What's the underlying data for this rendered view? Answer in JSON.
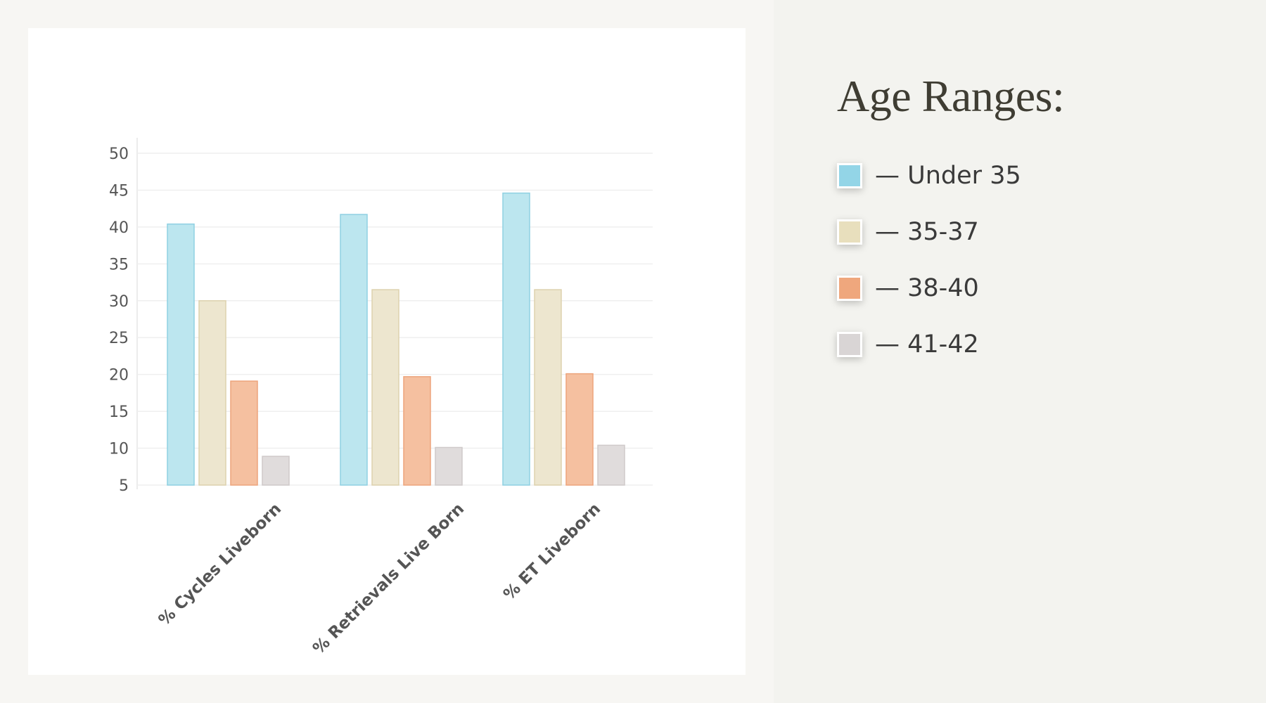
{
  "legend": {
    "title": "Age Ranges:",
    "items": [
      {
        "label": "— Under 35",
        "color": "#93d5e7"
      },
      {
        "label": "— 35-37",
        "color": "#e8dfbd"
      },
      {
        "label": "— 38-40",
        "color": "#efa77d"
      },
      {
        "label": "— 41-42",
        "color": "#d9d5d5"
      }
    ]
  },
  "chart_data": {
    "type": "bar",
    "categories": [
      "% Cycles Liveborn",
      "% Retrievals Live Born",
      "% ET Liveborn"
    ],
    "series": [
      {
        "name": "Under 35",
        "values": [
          40.4,
          41.7,
          44.6
        ],
        "fill": "#bce6ef",
        "stroke": "#8fd0e2"
      },
      {
        "name": "35-37",
        "values": [
          30.0,
          31.5,
          31.5
        ],
        "fill": "#ede6cf",
        "stroke": "#ddd2ae"
      },
      {
        "name": "38-40",
        "values": [
          19.1,
          19.7,
          20.1
        ],
        "fill": "#f5c0a0",
        "stroke": "#eda47c"
      },
      {
        "name": "41-42",
        "values": [
          8.9,
          10.1,
          10.4
        ],
        "fill": "#e0dcdc",
        "stroke": "#cfcaca"
      }
    ],
    "yticks": [
      5,
      10,
      15,
      20,
      25,
      30,
      35,
      40,
      45,
      50
    ],
    "ylim": [
      5,
      50
    ],
    "grid": true,
    "xlabel": "",
    "ylabel": ""
  }
}
